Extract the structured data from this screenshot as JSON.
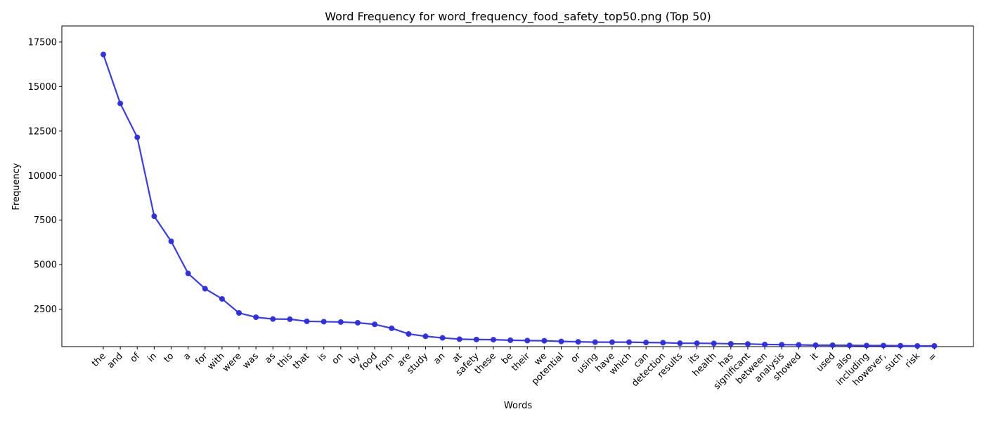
{
  "chart_data": {
    "type": "line",
    "title": "Word Frequency for word_frequency_food_safety_top50.png (Top 50)",
    "xlabel": "Words",
    "ylabel": "Frequency",
    "ylim": [
      400,
      18400
    ],
    "yticks": [
      2500,
      5000,
      7500,
      10000,
      12500,
      15000,
      17500
    ],
    "grid": false,
    "line_color": "#3a3af0",
    "marker_color": "#2a2ae0",
    "categories": [
      "the",
      "and",
      "of",
      "in",
      "to",
      "a",
      "for",
      "with",
      "were",
      "was",
      "as",
      "this",
      "that",
      "is",
      "on",
      "by",
      "food",
      "from",
      "are",
      "study",
      "an",
      "at",
      "safety",
      "these",
      "be",
      "their",
      "we",
      "potential",
      "or",
      "using",
      "have",
      "which",
      "can",
      "detection",
      "results",
      "its",
      "health",
      "has",
      "significant",
      "between",
      "analysis",
      "showed",
      "it",
      "used",
      "also",
      "including",
      "however,",
      "such",
      "risk",
      "="
    ],
    "series": [
      {
        "values": [
          16800,
          14050,
          12150,
          7720,
          6310,
          4510,
          3650,
          3080,
          2290,
          2050,
          1950,
          1940,
          1820,
          1800,
          1780,
          1740,
          1650,
          1430,
          1110,
          980,
          890,
          820,
          800,
          790,
          760,
          740,
          730,
          690,
          670,
          650,
          650,
          650,
          630,
          620,
          590,
          590,
          580,
          560,
          550,
          520,
          510,
          500,
          480,
          480,
          470,
          460,
          460,
          450,
          440,
          440
        ]
      }
    ]
  }
}
